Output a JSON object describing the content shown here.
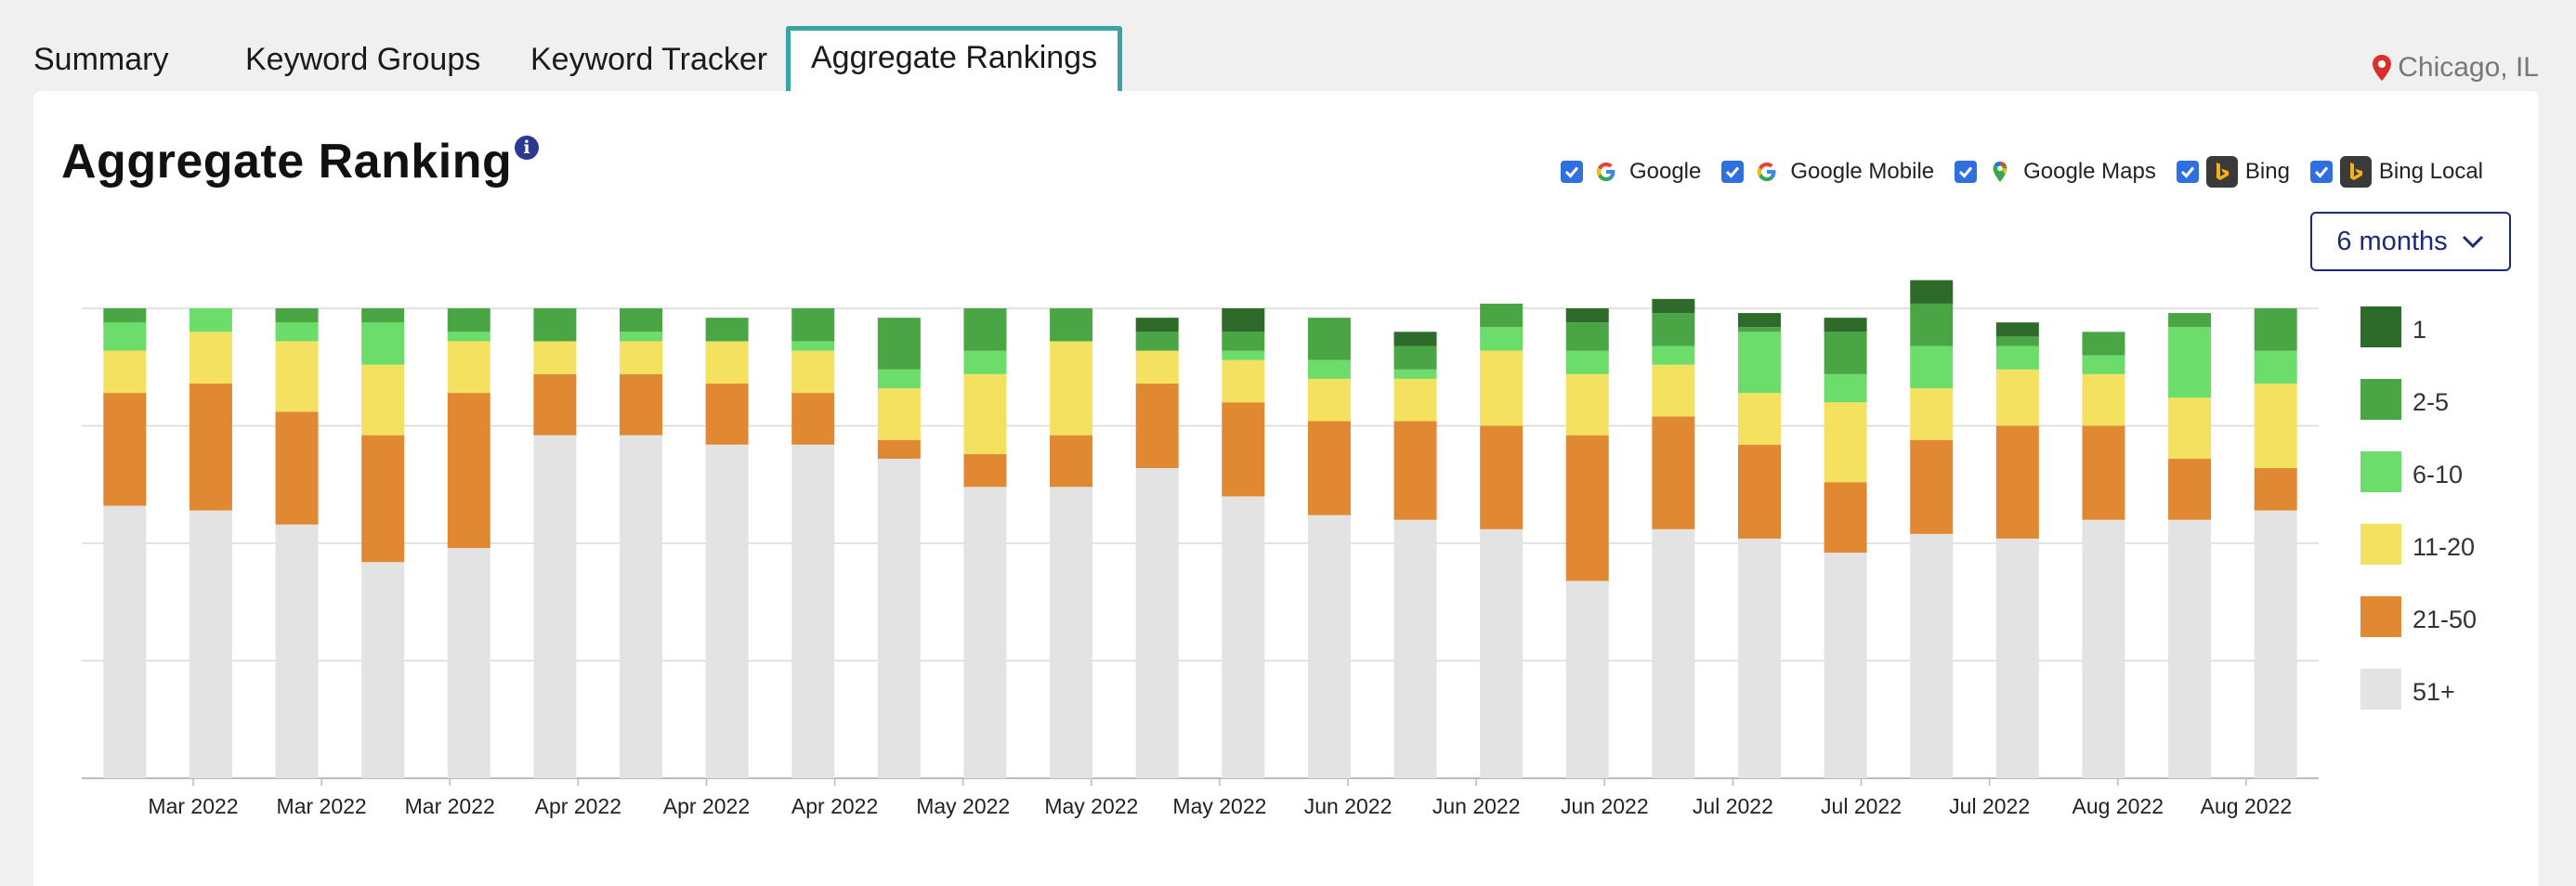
{
  "tabs": [
    {
      "label": "Summary",
      "active": false
    },
    {
      "label": "Keyword Groups",
      "active": false
    },
    {
      "label": "Keyword Tracker",
      "active": false
    },
    {
      "label": "Aggregate Rankings",
      "active": true
    }
  ],
  "location": "Chicago, IL",
  "title": "Aggregate Ranking",
  "info_icon": "i",
  "filters": [
    {
      "label": "Google",
      "checked": true,
      "icon": "google-icon"
    },
    {
      "label": "Google Mobile",
      "checked": true,
      "icon": "google-icon"
    },
    {
      "label": "Google Maps",
      "checked": true,
      "icon": "google-maps-icon"
    },
    {
      "label": "Bing",
      "checked": true,
      "icon": "bing-icon"
    },
    {
      "label": "Bing Local",
      "checked": true,
      "icon": "bing-icon"
    }
  ],
  "range": {
    "label": "6 months"
  },
  "colors": {
    "accent_tab": "#3aa3a3",
    "location_pin": "#d9302c",
    "range_border": "#1e2a78"
  },
  "chart_data": {
    "type": "bar",
    "stacked": true,
    "normalized": true,
    "ylim": [
      0,
      100
    ],
    "grid": true,
    "legend_position": "right",
    "x_tick_labels": [
      "Mar 2022",
      "Mar 2022",
      "Mar 2022",
      "Apr 2022",
      "Apr 2022",
      "Apr 2022",
      "May 2022",
      "May 2022",
      "May 2022",
      "Jun 2022",
      "Jun 2022",
      "Jun 2022",
      "Jul 2022",
      "Jul 2022",
      "Jul 2022",
      "Aug 2022",
      "Aug 2022"
    ],
    "bar_count": 26,
    "series": [
      {
        "name": "1",
        "color": "#2e6b2a",
        "values": [
          0,
          0,
          0,
          0,
          0,
          0,
          0,
          0,
          0,
          0,
          0,
          0,
          3,
          5,
          0,
          3,
          0,
          3,
          3,
          3,
          3,
          5,
          3,
          0,
          0,
          0
        ]
      },
      {
        "name": "2-5",
        "color": "#4aa544",
        "values": [
          3,
          0,
          3,
          3,
          5,
          7,
          5,
          5,
          7,
          11,
          9,
          7,
          4,
          4,
          9,
          5,
          5,
          6,
          7,
          1,
          9,
          9,
          2,
          5,
          3,
          9
        ]
      },
      {
        "name": "6-10",
        "color": "#6cdc6a",
        "values": [
          6,
          5,
          4,
          9,
          2,
          0,
          2,
          0,
          2,
          4,
          5,
          0,
          0,
          2,
          4,
          2,
          5,
          5,
          4,
          13,
          6,
          9,
          5,
          4,
          15,
          7
        ]
      },
      {
        "name": "11-20",
        "color": "#f5e160",
        "values": [
          9,
          11,
          15,
          15,
          11,
          7,
          7,
          9,
          9,
          11,
          17,
          20,
          7,
          9,
          9,
          9,
          16,
          13,
          11,
          11,
          17,
          11,
          12,
          11,
          13,
          18
        ]
      },
      {
        "name": "21-50",
        "color": "#e08832",
        "values": [
          24,
          27,
          24,
          27,
          33,
          13,
          13,
          13,
          11,
          4,
          7,
          11,
          18,
          20,
          20,
          21,
          22,
          31,
          24,
          20,
          15,
          20,
          24,
          20,
          13,
          9
        ]
      },
      {
        "name": "51+",
        "color": "#e3e3e3",
        "values": [
          58,
          57,
          54,
          46,
          49,
          73,
          73,
          71,
          71,
          68,
          62,
          62,
          66,
          60,
          56,
          55,
          53,
          42,
          53,
          51,
          48,
          52,
          51,
          55,
          55,
          57
        ]
      }
    ]
  }
}
